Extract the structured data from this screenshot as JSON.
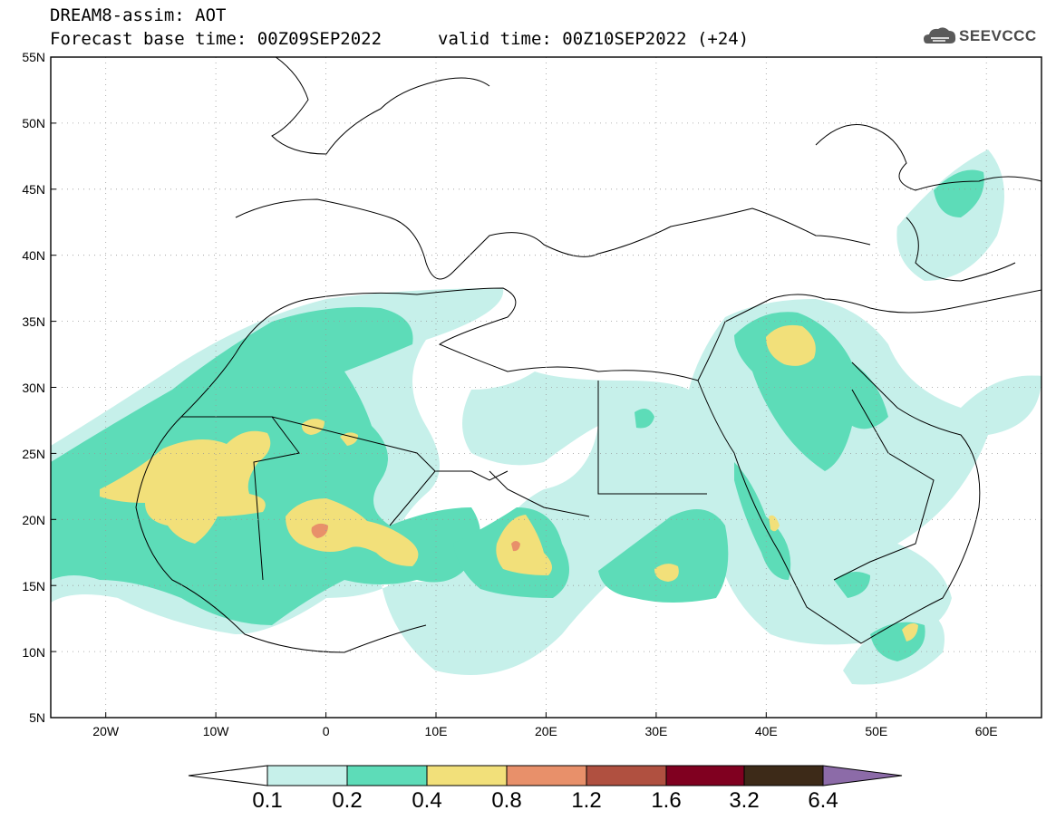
{
  "header": {
    "line1": "DREAM8-assim: AOT",
    "line2": "Forecast base time: 00Z09SEP2022",
    "valid": "valid time: 00Z10SEP2022 (+24)"
  },
  "logo": {
    "text": "SEEVCCC",
    "icon": "cloud-icon"
  },
  "map": {
    "lon_range": [
      -25,
      65
    ],
    "lat_range": [
      5,
      55
    ],
    "x_ticks": [
      "20W",
      "10W",
      "0",
      "10E",
      "20E",
      "30E",
      "40E",
      "50E",
      "60E"
    ],
    "y_ticks": [
      "55N",
      "50N",
      "45N",
      "40N",
      "35N",
      "30N",
      "25N",
      "20N",
      "15N",
      "10N",
      "5N"
    ],
    "grid": "dotted"
  },
  "colorbar": {
    "labels": [
      "0.1",
      "0.2",
      "0.4",
      "0.8",
      "1.2",
      "1.6",
      "3.2",
      "6.4"
    ],
    "colors": [
      "#c6f0ea",
      "#5ddcb8",
      "#f2e07a",
      "#e8906a",
      "#b05040",
      "#800020",
      "#3d2a18",
      "#8c6ba8"
    ]
  }
}
